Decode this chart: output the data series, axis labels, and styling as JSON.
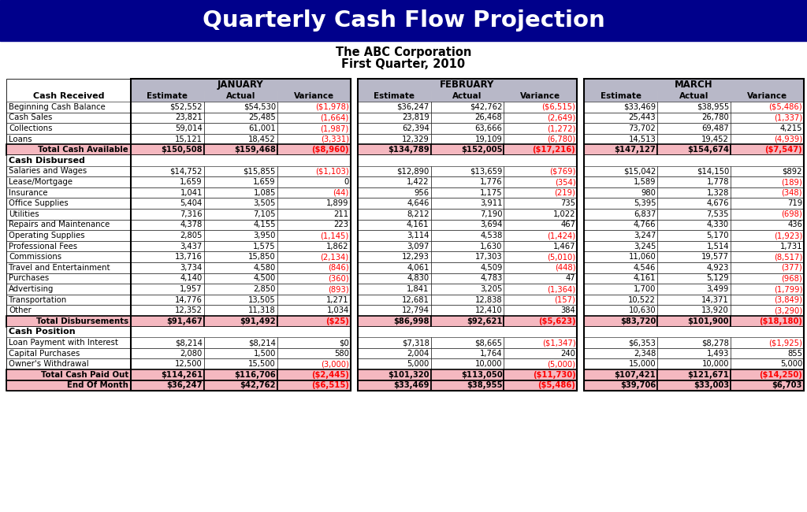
{
  "title": "Quarterly Cash Flow Projection",
  "subtitle1": "The ABC Corporation",
  "subtitle2": "First Quarter, 2010",
  "title_bg": "#00008B",
  "title_color": "#FFFFFF",
  "subtitle_color": "#000000",
  "header_bg": "#B8B8C8",
  "total_row_bg": "#F5B8C0",
  "negative_color": "#FF0000",
  "positive_color": "#000000",
  "months": [
    "JANUARY",
    "FEBRUARY",
    "MARCH"
  ],
  "col_headers": [
    "Estimate",
    "Actual",
    "Variance"
  ],
  "sections": [
    {
      "name": "Cash Received",
      "rows": [
        {
          "label": "Beginning Cash Balance",
          "jan": [
            "$52,552",
            "$54,530",
            "($1,978)"
          ],
          "feb": [
            "$36,247",
            "$42,762",
            "($6,515)"
          ],
          "mar": [
            "$33,469",
            "$38,955",
            "($5,486)"
          ]
        },
        {
          "label": "Cash Sales",
          "jan": [
            "23,821",
            "25,485",
            "(1,664)"
          ],
          "feb": [
            "23,819",
            "26,468",
            "(2,649)"
          ],
          "mar": [
            "25,443",
            "26,780",
            "(1,337)"
          ]
        },
        {
          "label": "Collections",
          "jan": [
            "59,014",
            "61,001",
            "(1,987)"
          ],
          "feb": [
            "62,394",
            "63,666",
            "(1,272)"
          ],
          "mar": [
            "73,702",
            "69,487",
            "4,215"
          ]
        },
        {
          "label": "Loans",
          "jan": [
            "15,121",
            "18,452",
            "(3,331)"
          ],
          "feb": [
            "12,329",
            "19,109",
            "(6,780)"
          ],
          "mar": [
            "14,513",
            "19,452",
            "(4,939)"
          ]
        }
      ],
      "total": {
        "label": "Total Cash Available",
        "jan": [
          "$150,508",
          "$159,468",
          "($8,960)"
        ],
        "feb": [
          "$134,789",
          "$152,005",
          "($17,216)"
        ],
        "mar": [
          "$147,127",
          "$154,674",
          "($7,547)"
        ]
      }
    },
    {
      "name": "Cash Disbursed",
      "rows": [
        {
          "label": "Salaries and Wages",
          "jan": [
            "$14,752",
            "$15,855",
            "($1,103)"
          ],
          "feb": [
            "$12,890",
            "$13,659",
            "($769)"
          ],
          "mar": [
            "$15,042",
            "$14,150",
            "$892"
          ]
        },
        {
          "label": "Lease/Mortgage",
          "jan": [
            "1,659",
            "1,659",
            "0"
          ],
          "feb": [
            "1,422",
            "1,776",
            "(354)"
          ],
          "mar": [
            "1,589",
            "1,778",
            "(189)"
          ]
        },
        {
          "label": "Insurance",
          "jan": [
            "1,041",
            "1,085",
            "(44)"
          ],
          "feb": [
            "956",
            "1,175",
            "(219)"
          ],
          "mar": [
            "980",
            "1,328",
            "(348)"
          ]
        },
        {
          "label": "Office Supplies",
          "jan": [
            "5,404",
            "3,505",
            "1,899"
          ],
          "feb": [
            "4,646",
            "3,911",
            "735"
          ],
          "mar": [
            "5,395",
            "4,676",
            "719"
          ]
        },
        {
          "label": "Utilities",
          "jan": [
            "7,316",
            "7,105",
            "211"
          ],
          "feb": [
            "8,212",
            "7,190",
            "1,022"
          ],
          "mar": [
            "6,837",
            "7,535",
            "(698)"
          ]
        },
        {
          "label": "Repairs and Maintenance",
          "jan": [
            "4,378",
            "4,155",
            "223"
          ],
          "feb": [
            "4,161",
            "3,694",
            "467"
          ],
          "mar": [
            "4,766",
            "4,330",
            "436"
          ]
        },
        {
          "label": "Operating Supplies",
          "jan": [
            "2,805",
            "3,950",
            "(1,145)"
          ],
          "feb": [
            "3,114",
            "4,538",
            "(1,424)"
          ],
          "mar": [
            "3,247",
            "5,170",
            "(1,923)"
          ]
        },
        {
          "label": "Professional Fees",
          "jan": [
            "3,437",
            "1,575",
            "1,862"
          ],
          "feb": [
            "3,097",
            "1,630",
            "1,467"
          ],
          "mar": [
            "3,245",
            "1,514",
            "1,731"
          ]
        },
        {
          "label": "Commissions",
          "jan": [
            "13,716",
            "15,850",
            "(2,134)"
          ],
          "feb": [
            "12,293",
            "17,303",
            "(5,010)"
          ],
          "mar": [
            "11,060",
            "19,577",
            "(8,517)"
          ]
        },
        {
          "label": "Travel and Entertainment",
          "jan": [
            "3,734",
            "4,580",
            "(846)"
          ],
          "feb": [
            "4,061",
            "4,509",
            "(448)"
          ],
          "mar": [
            "4,546",
            "4,923",
            "(377)"
          ]
        },
        {
          "label": "Purchases",
          "jan": [
            "4,140",
            "4,500",
            "(360)"
          ],
          "feb": [
            "4,830",
            "4,783",
            "47"
          ],
          "mar": [
            "4,161",
            "5,129",
            "(968)"
          ]
        },
        {
          "label": "Advertising",
          "jan": [
            "1,957",
            "2,850",
            "(893)"
          ],
          "feb": [
            "1,841",
            "3,205",
            "(1,364)"
          ],
          "mar": [
            "1,700",
            "3,499",
            "(1,799)"
          ]
        },
        {
          "label": "Transportation",
          "jan": [
            "14,776",
            "13,505",
            "1,271"
          ],
          "feb": [
            "12,681",
            "12,838",
            "(157)"
          ],
          "mar": [
            "10,522",
            "14,371",
            "(3,849)"
          ]
        },
        {
          "label": "Other",
          "jan": [
            "12,352",
            "11,318",
            "1,034"
          ],
          "feb": [
            "12,794",
            "12,410",
            "384"
          ],
          "mar": [
            "10,630",
            "13,920",
            "(3,290)"
          ]
        }
      ],
      "total": {
        "label": "Total Disbursements",
        "jan": [
          "$91,467",
          "$91,492",
          "($25)"
        ],
        "feb": [
          "$86,998",
          "$92,621",
          "($5,623)"
        ],
        "mar": [
          "$83,720",
          "$101,900",
          "($18,180)"
        ]
      }
    },
    {
      "name": "Cash Position",
      "rows": [
        {
          "label": "Loan Payment with Interest",
          "jan": [
            "$8,214",
            "$8,214",
            "$0"
          ],
          "feb": [
            "$7,318",
            "$8,665",
            "($1,347)"
          ],
          "mar": [
            "$6,353",
            "$8,278",
            "($1,925)"
          ]
        },
        {
          "label": "Capital Purchases",
          "jan": [
            "2,080",
            "1,500",
            "580"
          ],
          "feb": [
            "2,004",
            "1,764",
            "240"
          ],
          "mar": [
            "2,348",
            "1,493",
            "855"
          ]
        },
        {
          "label": "Owner's Withdrawal",
          "jan": [
            "12,500",
            "15,500",
            "(3,000)"
          ],
          "feb": [
            "5,000",
            "10,000",
            "(5,000)"
          ],
          "mar": [
            "15,000",
            "10,000",
            "5,000"
          ]
        }
      ],
      "total": {
        "label": "Total Cash Paid Out",
        "jan": [
          "$114,261",
          "$116,706",
          "($2,445)"
        ],
        "feb": [
          "$101,320",
          "$113,050",
          "($11,730)"
        ],
        "mar": [
          "$107,421",
          "$121,671",
          "($14,250)"
        ]
      },
      "final": {
        "label": "End Of Month",
        "jan": [
          "$36,247",
          "$42,762",
          "($6,515)"
        ],
        "feb": [
          "$33,469",
          "$38,955",
          "($5,486)"
        ],
        "mar": [
          "$39,706",
          "$33,003",
          "$6,703"
        ]
      }
    }
  ]
}
